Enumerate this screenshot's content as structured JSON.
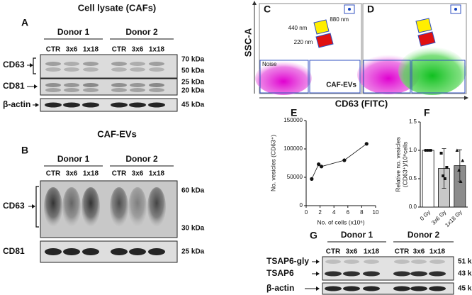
{
  "panel_A": {
    "label": "A",
    "title": "Cell lysate (CAFs)",
    "donors": [
      "Donor 1",
      "Donor 2"
    ],
    "lanes": [
      "CTR",
      "3x6",
      "1x18",
      "CTR",
      "3x6",
      "1x18"
    ],
    "blots": [
      {
        "names": [
          "CD63"
        ],
        "markers": [
          "70 kDa",
          "50 kDa"
        ]
      },
      {
        "names": [
          "CD81"
        ],
        "markers": [
          "25 kDa",
          "20 kDa"
        ]
      },
      {
        "names": [
          "β-actin"
        ],
        "markers": [
          "45 kDa"
        ]
      }
    ]
  },
  "panel_B": {
    "label": "B",
    "title": "CAF-EVs",
    "donors": [
      "Donor 1",
      "Donor 2"
    ],
    "lanes": [
      "CTR",
      "3x6",
      "1x18",
      "CTR",
      "3x6",
      "1x18"
    ],
    "blots": [
      {
        "names": [
          "CD63"
        ],
        "markers": [
          "60 kDa",
          "30 kDa"
        ]
      },
      {
        "names": [
          "CD81"
        ],
        "markers": [
          "25 kDa"
        ]
      }
    ]
  },
  "panel_C": {
    "label": "C",
    "y_label": "SSC-A",
    "gates": [
      "880 nm",
      "440 nm",
      "220 nm",
      "Noise",
      "CAF-EVs"
    ]
  },
  "panel_D": {
    "label": "D",
    "x_label": "CD63 (FITC)"
  },
  "panel_E": {
    "label": "E",
    "type": "scatter",
    "line": true,
    "x": [
      0.8,
      1.8,
      2.2,
      5.5,
      8.7
    ],
    "values": [
      47000,
      73000,
      69000,
      80000,
      109000
    ],
    "xlim": [
      0,
      10
    ],
    "xticks": [
      0,
      2,
      4,
      6,
      8,
      10
    ],
    "ylim": [
      0,
      150000
    ],
    "yticks": [
      0,
      50000,
      100000,
      150000
    ],
    "x_label": "No. of cells (x10⁶)",
    "y_label": "No. vesicles (CD63⁺)",
    "color": "#111111"
  },
  "panel_F": {
    "label": "F",
    "type": "bar",
    "categories": [
      "0 Gy",
      "3x6 Gy",
      "1x18 Gy"
    ],
    "values": [
      1.0,
      0.68,
      0.73
    ],
    "errors": [
      0,
      0.35,
      0.28
    ],
    "points": [
      [
        1,
        1,
        1,
        1
      ],
      [
        0.95,
        0.55,
        0.5,
        0.7
      ],
      [
        1.0,
        0.65,
        0.45,
        0.82
      ]
    ],
    "point_shapes": [
      "circle",
      "square",
      "triangle"
    ],
    "colors": [
      "#ffffff",
      "#c8c8c8",
      "#8c8c8c"
    ],
    "ylim": [
      0,
      1.5
    ],
    "yticks": [
      {
        "value": 0,
        "label": "0.0"
      },
      0.5,
      {
        "value": 1,
        "label": "1.0"
      },
      1.5
    ],
    "y_label": [
      "Relative no. vesicles",
      "(CD63⁺)/10⁶cells"
    ]
  },
  "panel_G": {
    "label": "G",
    "donors": [
      "Donor 1",
      "Donor 2"
    ],
    "lanes": [
      "CTR",
      "3x6",
      "1x18",
      "CTR",
      "3x6",
      "1x18"
    ],
    "blots": [
      {
        "names": [
          "TSAP6-gly",
          "TSAP6"
        ],
        "markers": [
          "51 kDa",
          "43 kDa"
        ]
      },
      {
        "names": [
          "β-actin"
        ],
        "markers": [
          "45 kDa"
        ]
      }
    ]
  }
}
